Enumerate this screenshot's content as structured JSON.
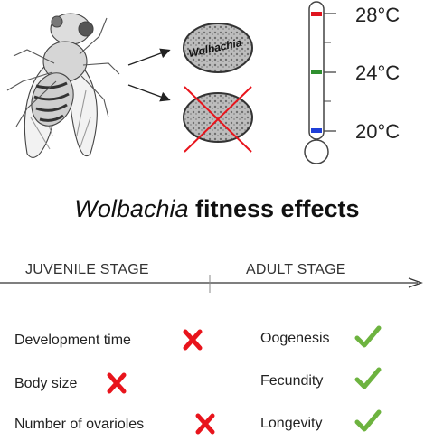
{
  "top": {
    "egg_label": "Wolbachia",
    "thermometer": {
      "labels": [
        "28°C",
        "24°C",
        "20°C"
      ],
      "colors": [
        "#e0141e",
        "#2f8f2f",
        "#1f3fd8"
      ]
    }
  },
  "title": {
    "italic": "Wolbachia",
    "bold": "fitness effects"
  },
  "timeline": {
    "juvenile": "JUVENILE STAGE",
    "adult": "ADULT STAGE"
  },
  "juvenile_effects": [
    {
      "label": "Development time",
      "mark": "cross"
    },
    {
      "label": "Body size",
      "mark": "cross"
    },
    {
      "label": "Number of ovarioles",
      "mark": "cross"
    }
  ],
  "adult_effects": [
    {
      "label": "Oogenesis",
      "mark": "check"
    },
    {
      "label": "Fecundity",
      "mark": "check"
    },
    {
      "label": "Longevity",
      "mark": "check"
    }
  ],
  "colors": {
    "cross": "#e8141c",
    "check": "#6db33f"
  }
}
